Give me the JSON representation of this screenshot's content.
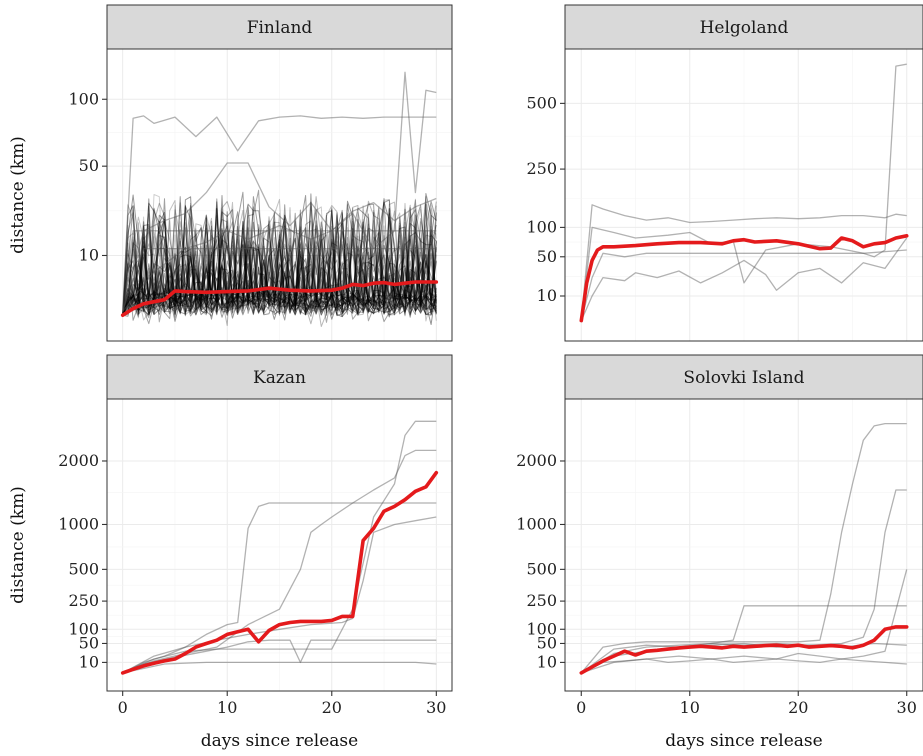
{
  "chart_data": [
    {
      "type": "line",
      "facet": "Finland",
      "xlabel": "days since release",
      "ylabel": "distance (km)",
      "y_scale": "sqrt",
      "xlim": [
        0,
        30
      ],
      "ylim": [
        0,
        135
      ],
      "x_ticks": [
        0,
        10,
        20,
        30
      ],
      "y_ticks": [
        10,
        50,
        100
      ],
      "grid": true,
      "series": [
        {
          "role": "mean",
          "color": "#e41a1c",
          "x": [
            0,
            1,
            2,
            3,
            4,
            5,
            6,
            8,
            10,
            12,
            14,
            16,
            18,
            20,
            21,
            22,
            23,
            24,
            25,
            26,
            27,
            28,
            29,
            30
          ],
          "y": [
            0.3,
            0.7,
            1.1,
            1.3,
            1.5,
            2.6,
            2.5,
            2.4,
            2.5,
            2.6,
            3.0,
            2.7,
            2.6,
            2.7,
            3.0,
            3.6,
            3.4,
            3.8,
            3.9,
            3.6,
            3.8,
            4.0,
            4.0,
            4.0
          ]
        },
        {
          "role": "individual",
          "x": [
            0,
            1,
            2,
            3,
            5,
            7,
            9,
            11,
            13,
            15,
            17,
            19,
            21,
            23,
            25,
            27,
            30
          ],
          "y": [
            0.5,
            84,
            86,
            80,
            85,
            70,
            85,
            60,
            82,
            85,
            86,
            84,
            85,
            84,
            85,
            85,
            85
          ]
        },
        {
          "role": "individual",
          "x": [
            0,
            3,
            6,
            8,
            10,
            12,
            15,
            18,
            20,
            22,
            24,
            26,
            27,
            28,
            29,
            30
          ],
          "y": [
            0.5,
            6,
            12,
            14,
            18,
            15,
            20,
            15,
            18,
            25,
            12,
            18,
            125,
            35,
            108,
            106
          ]
        },
        {
          "role": "individual",
          "x": [
            0,
            2,
            4,
            6,
            8,
            10,
            12,
            14,
            16,
            18,
            20,
            22,
            24,
            26,
            28,
            30
          ],
          "y": [
            0.5,
            18,
            22,
            25,
            35,
            52,
            52,
            28,
            20,
            30,
            18,
            26,
            30,
            22,
            28,
            32
          ]
        },
        {
          "role": "individual",
          "x": [
            0,
            1,
            3,
            5,
            8,
            11,
            14,
            17,
            20,
            23,
            26,
            29,
            30
          ],
          "y": [
            0.5,
            18,
            18,
            18,
            18,
            18,
            18,
            18,
            18,
            18,
            18,
            18,
            18
          ]
        },
        {
          "role": "individual",
          "x": [
            0,
            2,
            4,
            6,
            9,
            12,
            15,
            18,
            21,
            24,
            27,
            30
          ],
          "y": [
            0.5,
            12,
            12,
            12,
            12,
            12,
            12,
            12,
            12,
            12,
            12,
            12
          ]
        }
      ]
    },
    {
      "type": "line",
      "facet": "Helgoland",
      "xlabel": "days since release",
      "ylabel": "",
      "y_scale": "sqrt",
      "xlim": [
        0,
        30
      ],
      "ylim": [
        0,
        700
      ],
      "x_ticks": [
        0,
        10,
        20,
        30
      ],
      "y_ticks": [
        10,
        50,
        100,
        250,
        500
      ],
      "grid": true,
      "series": [
        {
          "role": "mean",
          "color": "#e41a1c",
          "x": [
            0,
            0.5,
            1,
            1.5,
            2,
            3,
            5,
            7,
            9,
            11,
            13,
            14,
            15,
            16,
            18,
            20,
            22,
            23,
            24,
            25,
            26,
            27,
            28,
            29,
            30
          ],
          "y": [
            0.5,
            20,
            45,
            60,
            65,
            65,
            67,
            70,
            72,
            72,
            70,
            75,
            77,
            73,
            75,
            70,
            62,
            63,
            80,
            75,
            65,
            70,
            72,
            80,
            84
          ]
        },
        {
          "role": "individual",
          "x": [
            0,
            1,
            2,
            4,
            6,
            8,
            10,
            12,
            14,
            16,
            18,
            20,
            22,
            24,
            26,
            28,
            29,
            30
          ],
          "y": [
            0.5,
            150,
            140,
            125,
            115,
            120,
            110,
            112,
            115,
            118,
            120,
            118,
            120,
            125,
            125,
            120,
            128,
            125
          ]
        },
        {
          "role": "individual",
          "x": [
            0,
            1,
            2,
            4,
            6,
            8,
            10,
            12,
            14,
            16,
            18,
            20,
            22,
            24,
            26,
            27,
            28,
            29,
            30
          ],
          "y": [
            0.5,
            25,
            55,
            50,
            55,
            55,
            55,
            55,
            55,
            55,
            55,
            55,
            55,
            55,
            55,
            50,
            60,
            680,
            690
          ]
        },
        {
          "role": "individual",
          "x": [
            0,
            1,
            2,
            4,
            5,
            7,
            9,
            11,
            13,
            15,
            17,
            18,
            20,
            22,
            24,
            26,
            28,
            30
          ],
          "y": [
            0.5,
            10,
            25,
            22,
            30,
            25,
            32,
            20,
            30,
            45,
            28,
            14,
            30,
            35,
            20,
            42,
            35,
            80
          ]
        },
        {
          "role": "individual",
          "x": [
            0,
            1,
            3,
            5,
            8,
            10,
            12,
            14,
            15,
            17,
            20,
            23,
            26,
            30
          ],
          "y": [
            0.5,
            100,
            90,
            80,
            85,
            90,
            70,
            75,
            20,
            60,
            70,
            65,
            55,
            60
          ]
        }
      ]
    },
    {
      "type": "line",
      "facet": "Kazan",
      "xlabel": "days since release",
      "ylabel": "distance (km)",
      "y_scale": "sqrt",
      "xlim": [
        0,
        30
      ],
      "ylim": [
        0,
        3000
      ],
      "x_ticks": [
        0,
        10,
        20,
        30
      ],
      "y_ticks": [
        10,
        50,
        100,
        250,
        500,
        1000,
        2000
      ],
      "grid": true,
      "series": [
        {
          "role": "mean",
          "color": "#e41a1c",
          "x": [
            0,
            1,
            2,
            3,
            4,
            5,
            6,
            7,
            8,
            9,
            10,
            11,
            12,
            13,
            14,
            15,
            16,
            17,
            18,
            19,
            20,
            21,
            22,
            23,
            24,
            25,
            26,
            27,
            28,
            29,
            30
          ],
          "y": [
            1,
            3,
            6,
            9,
            12,
            15,
            25,
            40,
            50,
            60,
            80,
            90,
            100,
            55,
            95,
            120,
            130,
            135,
            135,
            135,
            140,
            160,
            160,
            800,
            950,
            1180,
            1250,
            1350,
            1480,
            1550,
            1790
          ]
        },
        {
          "role": "individual",
          "x": [
            0,
            2,
            4,
            6,
            8,
            10,
            11,
            12,
            13,
            14,
            16,
            18,
            20,
            22,
            24,
            26,
            27,
            28,
            29,
            30
          ],
          "y": [
            1,
            10,
            20,
            40,
            80,
            120,
            130,
            950,
            1250,
            1300,
            1300,
            1300,
            1300,
            1300,
            1300,
            1300,
            1300,
            1300,
            1300,
            1300
          ]
        },
        {
          "role": "individual",
          "x": [
            0,
            3,
            6,
            9,
            12,
            14,
            16,
            18,
            20,
            22,
            24,
            26,
            27,
            28,
            29,
            30
          ],
          "y": [
            1,
            15,
            30,
            35,
            35,
            35,
            35,
            35,
            35,
            200,
            1100,
            1600,
            2500,
            2800,
            2800,
            2800
          ]
        },
        {
          "role": "individual",
          "x": [
            0,
            2,
            5,
            8,
            10,
            12,
            14,
            16,
            17,
            18,
            20,
            22,
            24,
            26,
            28,
            30
          ],
          "y": [
            1,
            8,
            18,
            30,
            40,
            55,
            60,
            60,
            10,
            60,
            60,
            60,
            60,
            60,
            60,
            60
          ]
        },
        {
          "role": "individual",
          "x": [
            0,
            4,
            8,
            12,
            16,
            20,
            24,
            28,
            30
          ],
          "y": [
            1,
            8,
            10,
            10,
            10,
            10,
            10,
            10,
            8
          ]
        },
        {
          "role": "individual",
          "x": [
            0,
            3,
            6,
            9,
            12,
            15,
            17,
            18,
            19,
            20,
            22,
            24,
            26,
            27,
            28,
            30
          ],
          "y": [
            1,
            12,
            25,
            40,
            120,
            200,
            500,
            900,
            1000,
            1100,
            1300,
            1500,
            1700,
            2100,
            2200,
            2200
          ]
        },
        {
          "role": "individual",
          "x": [
            0,
            3,
            6,
            9,
            12,
            15,
            18,
            21,
            22,
            23,
            24,
            26,
            28,
            30
          ],
          "y": [
            1,
            20,
            40,
            60,
            80,
            100,
            120,
            130,
            150,
            400,
            900,
            1000,
            1050,
            1100
          ]
        }
      ]
    },
    {
      "type": "line",
      "facet": "Solovki Island",
      "xlabel": "days since release",
      "ylabel": "",
      "y_scale": "sqrt",
      "xlim": [
        0,
        30
      ],
      "ylim": [
        0,
        3000
      ],
      "x_ticks": [
        0,
        10,
        20,
        30
      ],
      "y_ticks": [
        10,
        50,
        100,
        250,
        500,
        1000,
        2000
      ],
      "grid": true,
      "series": [
        {
          "role": "mean",
          "color": "#e41a1c",
          "x": [
            0,
            1,
            2,
            3,
            4,
            5,
            6,
            7,
            8,
            9,
            10,
            11,
            12,
            13,
            14,
            15,
            16,
            17,
            18,
            19,
            20,
            21,
            22,
            23,
            24,
            25,
            26,
            27,
            28,
            29,
            30
          ],
          "y": [
            1,
            5,
            12,
            20,
            30,
            22,
            30,
            32,
            35,
            38,
            40,
            42,
            40,
            38,
            42,
            40,
            42,
            44,
            45,
            42,
            45,
            40,
            42,
            44,
            42,
            38,
            45,
            60,
            100,
            110,
            110
          ]
        },
        {
          "role": "individual",
          "x": [
            0,
            2,
            4,
            6,
            8,
            10,
            12,
            14,
            16,
            18,
            20,
            22,
            23,
            24,
            25,
            26,
            27,
            28,
            29,
            30
          ],
          "y": [
            1,
            40,
            50,
            55,
            55,
            55,
            55,
            55,
            55,
            55,
            55,
            60,
            300,
            900,
            1600,
            2400,
            2700,
            2750,
            2750,
            2750
          ]
        },
        {
          "role": "individual",
          "x": [
            0,
            3,
            6,
            9,
            12,
            14,
            15,
            16,
            18,
            20,
            22,
            23,
            24,
            26,
            28,
            30
          ],
          "y": [
            1,
            20,
            30,
            40,
            50,
            60,
            220,
            220,
            220,
            220,
            220,
            220,
            220,
            220,
            220,
            220
          ]
        },
        {
          "role": "individual",
          "x": [
            0,
            3,
            6,
            9,
            12,
            15,
            18,
            21,
            24,
            26,
            27,
            28,
            29,
            30
          ],
          "y": [
            1,
            25,
            40,
            45,
            50,
            45,
            50,
            45,
            50,
            70,
            200,
            900,
            1500,
            1500
          ]
        },
        {
          "role": "individual",
          "x": [
            0,
            3,
            6,
            9,
            12,
            15,
            18,
            20,
            22,
            24,
            26,
            28,
            30
          ],
          "y": [
            1,
            10,
            15,
            20,
            15,
            20,
            15,
            25,
            20,
            15,
            20,
            30,
            500
          ]
        },
        {
          "role": "individual",
          "x": [
            0,
            2,
            4,
            6,
            8,
            10,
            12,
            14,
            16,
            18,
            20,
            22,
            24,
            26,
            28,
            30
          ],
          "y": [
            1,
            10,
            12,
            15,
            10,
            12,
            15,
            10,
            12,
            15,
            12,
            10,
            15,
            12,
            10,
            8
          ]
        },
        {
          "role": "individual",
          "x": [
            0,
            3,
            6,
            9,
            12,
            15,
            18,
            21,
            24,
            27,
            30
          ],
          "y": [
            1,
            35,
            45,
            40,
            45,
            50,
            40,
            45,
            40,
            50,
            45
          ]
        }
      ]
    }
  ]
}
